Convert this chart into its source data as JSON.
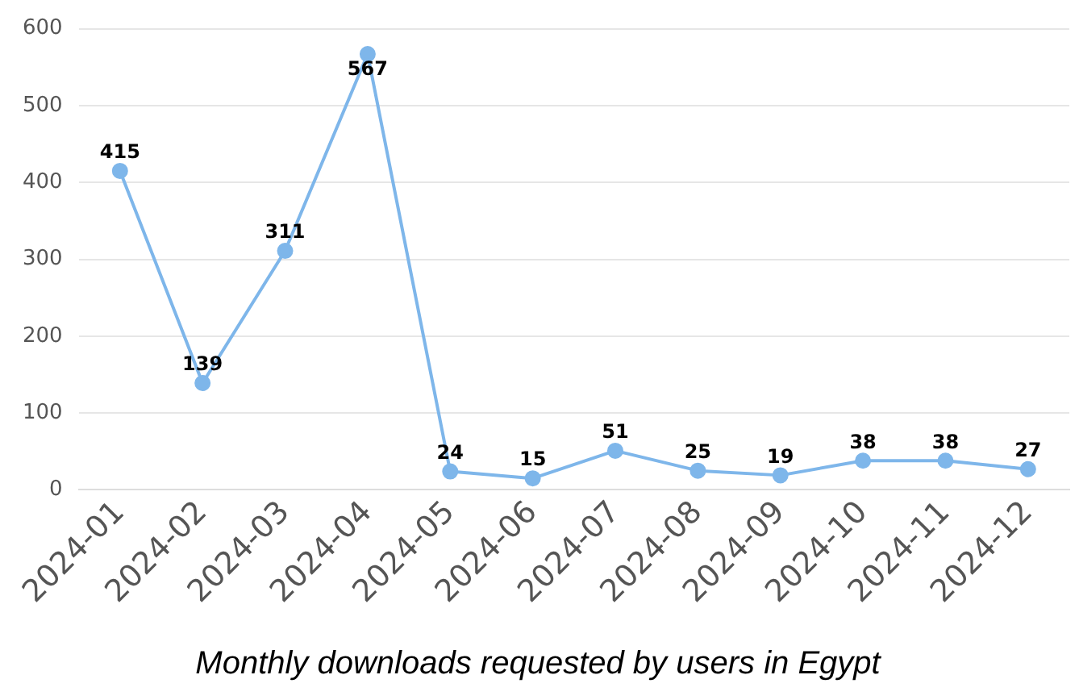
{
  "chart_data": {
    "type": "line",
    "title": "Monthly downloads requested by users in Egypt",
    "categories": [
      "2024-01",
      "2024-02",
      "2024-03",
      "2024-04",
      "2024-05",
      "2024-06",
      "2024-07",
      "2024-08",
      "2024-09",
      "2024-10",
      "2024-11",
      "2024-12"
    ],
    "values": [
      415,
      139,
      311,
      567,
      24,
      15,
      51,
      25,
      19,
      38,
      38,
      27
    ],
    "color": "#7eb6ea",
    "ylim": [
      0,
      600
    ],
    "yticks": [
      0,
      100,
      200,
      300,
      400,
      500,
      600
    ],
    "grid": "y",
    "marker": "circle",
    "line_style": "solid",
    "data_labels": true,
    "legend": false
  }
}
